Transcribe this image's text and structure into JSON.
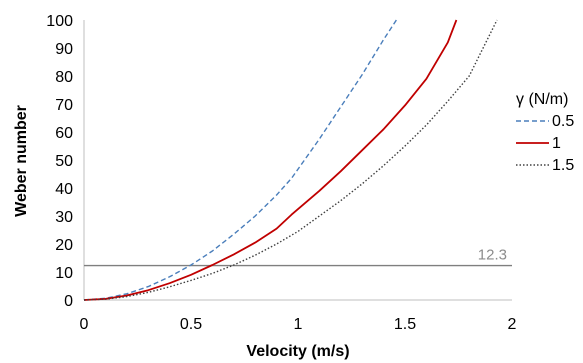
{
  "chart_data": {
    "type": "line",
    "xlabel": "Velocity (m/s)",
    "ylabel": "Weber number",
    "xlim": [
      0,
      2
    ],
    "ylim": [
      0,
      100
    ],
    "xticks": [
      0,
      0.5,
      1,
      1.5,
      2
    ],
    "yticks": [
      0,
      10,
      20,
      30,
      40,
      50,
      60,
      70,
      80,
      90,
      100
    ],
    "grid": false,
    "legend": {
      "title": "γ (N/m)",
      "placement": "right"
    },
    "series": [
      {
        "name": "0.5",
        "color": "#4a7ebb",
        "style": "dashed",
        "x": [
          0,
          0.1,
          0.2,
          0.3,
          0.4,
          0.5,
          0.6,
          0.7,
          0.8,
          0.9,
          0.97,
          1.1,
          1.2,
          1.3,
          1.4,
          1.46
        ],
        "y": [
          0,
          0.6,
          2.2,
          4.8,
          8.3,
          12.5,
          17.5,
          23.5,
          30,
          37.5,
          43.5,
          57.5,
          69,
          80.5,
          93,
          100
        ]
      },
      {
        "name": "1",
        "color": "#c00000",
        "style": "solid",
        "x": [
          0,
          0.1,
          0.2,
          0.3,
          0.4,
          0.5,
          0.6,
          0.7,
          0.8,
          0.9,
          0.97,
          1.1,
          1.2,
          1.3,
          1.4,
          1.5,
          1.6,
          1.7,
          1.74
        ],
        "y": [
          0,
          0.4,
          1.6,
          3.5,
          6,
          9,
          12.5,
          16.3,
          20.5,
          25.5,
          30.5,
          39,
          46,
          53.5,
          61,
          69.5,
          79,
          92,
          100
        ]
      },
      {
        "name": "1.5",
        "color": "#404040",
        "style": "dotted",
        "x": [
          0,
          0.1,
          0.2,
          0.3,
          0.4,
          0.5,
          0.6,
          0.7,
          0.8,
          0.9,
          1.0,
          1.1,
          1.2,
          1.3,
          1.4,
          1.5,
          1.6,
          1.7,
          1.8,
          1.93
        ],
        "y": [
          0,
          0.3,
          1.2,
          2.7,
          4.7,
          7,
          9.5,
          12.5,
          16,
          20,
          24.5,
          30,
          35.5,
          41.5,
          48,
          55,
          62.5,
          71,
          80,
          100
        ]
      }
    ],
    "reference_line": {
      "y": 12.3,
      "label": "12.3",
      "color": "#7f7f7f"
    }
  }
}
